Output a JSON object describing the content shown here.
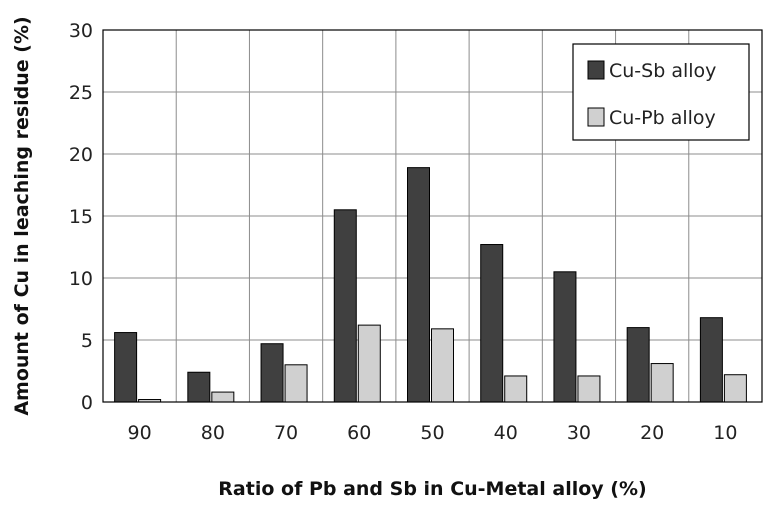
{
  "chart_data": {
    "type": "bar",
    "title": "",
    "xlabel": "Ratio of Pb and Sb in Cu-Metal alloy (%)",
    "ylabel": "Amount of Cu in leaching residue (%)",
    "categories": [
      "90",
      "80",
      "70",
      "60",
      "50",
      "40",
      "30",
      "20",
      "10"
    ],
    "ylim": [
      0,
      30
    ],
    "yticks": [
      "0",
      "5",
      "10",
      "15",
      "20",
      "25",
      "30"
    ],
    "grid": true,
    "legend_position": "top-right",
    "series": [
      {
        "name": "Cu-Sb alloy",
        "color": "#404040",
        "values": [
          5.6,
          2.4,
          4.7,
          15.5,
          18.9,
          12.7,
          10.5,
          6.0,
          6.8
        ]
      },
      {
        "name": "Cu-Pb alloy",
        "color": "#d0d0d0",
        "values": [
          0.2,
          0.8,
          3.0,
          6.2,
          5.9,
          2.1,
          2.1,
          3.1,
          2.2
        ]
      }
    ]
  }
}
